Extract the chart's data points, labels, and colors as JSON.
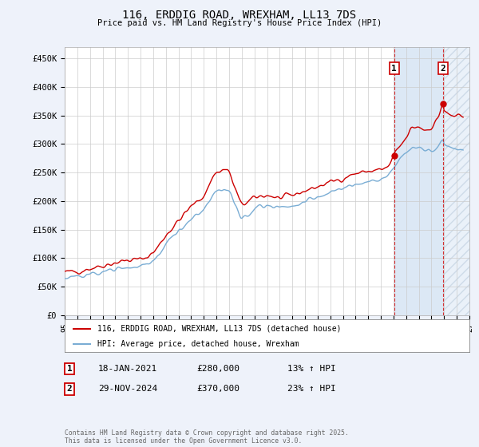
{
  "title": "116, ERDDIG ROAD, WREXHAM, LL13 7DS",
  "subtitle": "Price paid vs. HM Land Registry's House Price Index (HPI)",
  "ylabel_ticks": [
    "£0",
    "£50K",
    "£100K",
    "£150K",
    "£200K",
    "£250K",
    "£300K",
    "£350K",
    "£400K",
    "£450K"
  ],
  "ytick_values": [
    0,
    50000,
    100000,
    150000,
    200000,
    250000,
    300000,
    350000,
    400000,
    450000
  ],
  "ylim": [
    0,
    470000
  ],
  "xlim_start": 1995,
  "xlim_end": 2027,
  "bg_color": "#eef2fa",
  "plot_bg": "#ffffff",
  "plot_bg_future": "#e8eef8",
  "grid_color": "#cccccc",
  "red_color": "#cc0000",
  "blue_color": "#7aadd4",
  "shade_color": "#dce8f5",
  "hatch_color": "#bbccdd",
  "legend_label_red": "116, ERDDIG ROAD, WREXHAM, LL13 7DS (detached house)",
  "legend_label_blue": "HPI: Average price, detached house, Wrexham",
  "annotation1_label": "1",
  "annotation1_date": "18-JAN-2021",
  "annotation1_price": "£280,000",
  "annotation1_hpi": "13% ↑ HPI",
  "annotation1_year": 2021.05,
  "annotation1_value": 280000,
  "annotation2_label": "2",
  "annotation2_date": "29-NOV-2024",
  "annotation2_price": "£370,000",
  "annotation2_hpi": "23% ↑ HPI",
  "annotation2_year": 2024.92,
  "annotation2_value": 370000,
  "footer": "Contains HM Land Registry data © Crown copyright and database right 2025.\nThis data is licensed under the Open Government Licence v3.0."
}
